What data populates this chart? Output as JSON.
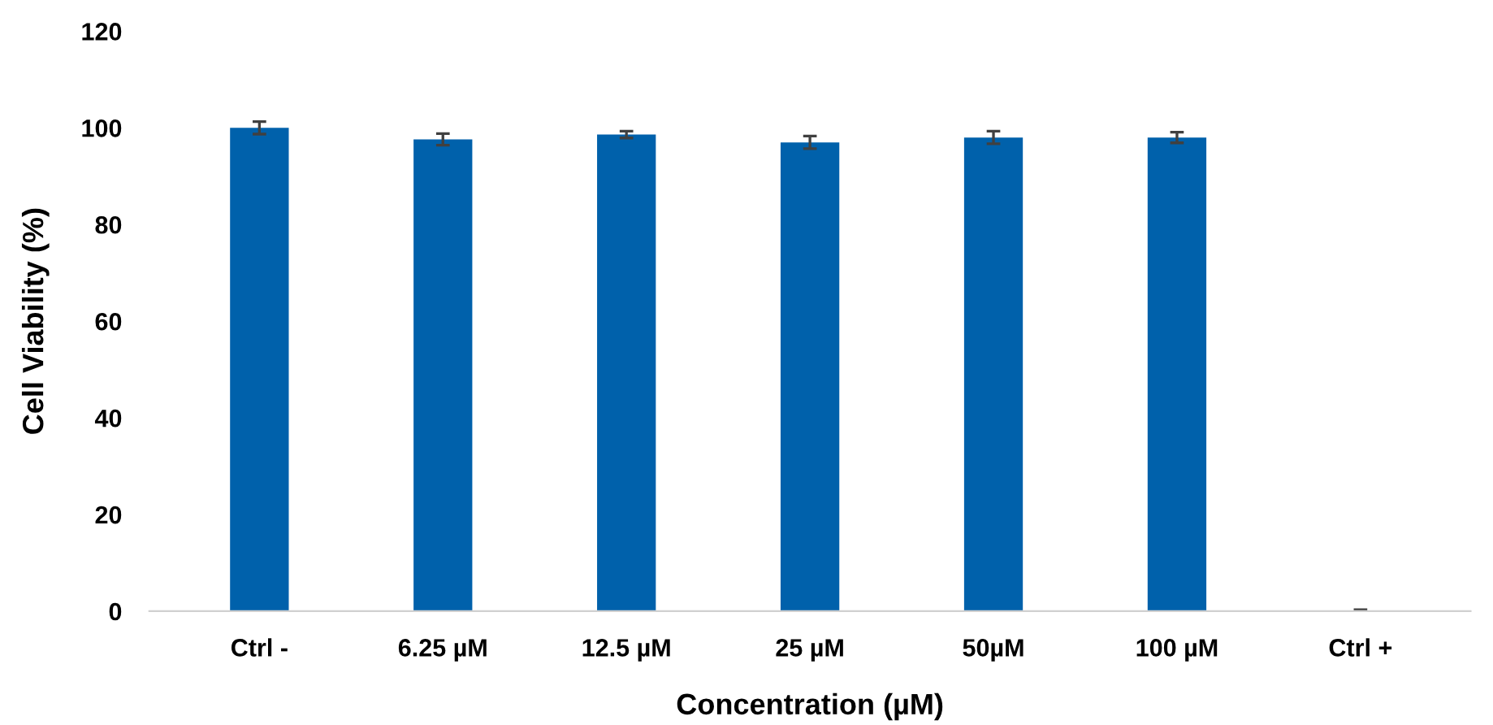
{
  "chart_data": {
    "type": "bar",
    "xlabel": "Concentration (µM)",
    "ylabel": "Cell Viability (%)",
    "categories": [
      "Ctrl -",
      "6.25 µM",
      "12.5 µM",
      "25 µM",
      "50µM",
      "100 µM",
      "Ctrl +"
    ],
    "series": [
      {
        "color": "#0061ab",
        "values": [
          100,
          97.6,
          98.6,
          97,
          98,
          98,
          0
        ],
        "errors": [
          1.3,
          1.2,
          0.7,
          1.3,
          1.3,
          1.1,
          0.3
        ]
      }
    ],
    "ylim": [
      0,
      120
    ],
    "yticks": [
      0,
      20,
      40,
      60,
      80,
      100,
      120
    ],
    "grid": false,
    "legend": false
  }
}
